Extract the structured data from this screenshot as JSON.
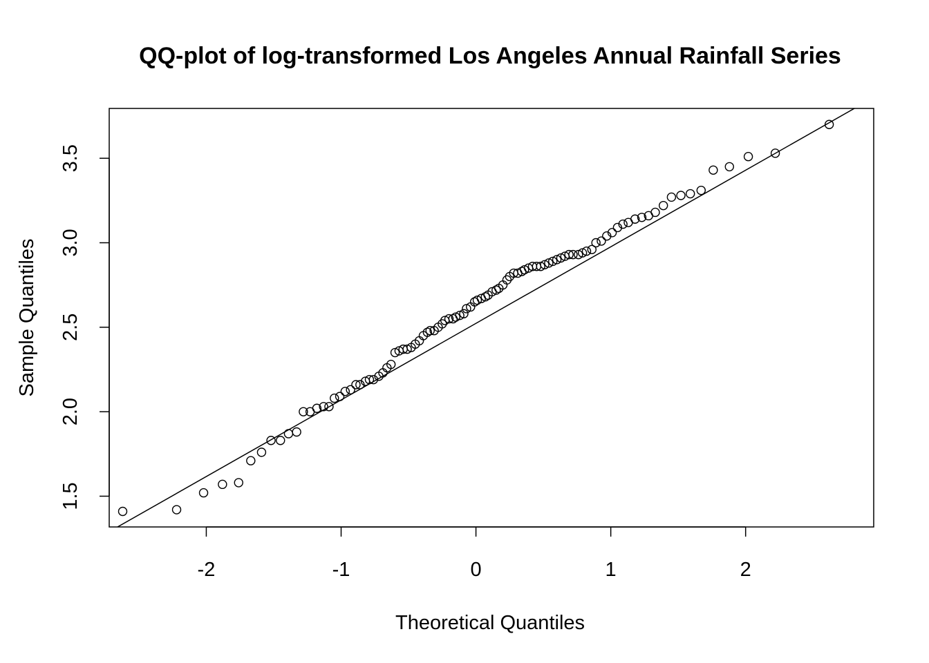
{
  "chart_data": {
    "type": "scatter",
    "title": "QQ-plot of log-transformed Los Angeles Annual Rainfall Series",
    "xlabel": "Theoretical Quantiles",
    "ylabel": "Sample Quantiles",
    "xlim": [
      -2.72,
      2.95
    ],
    "ylim": [
      1.318,
      3.795
    ],
    "x_ticks": [
      -2,
      -1,
      0,
      1,
      2
    ],
    "x_tick_labels": [
      "-2",
      "-1",
      "0",
      "1",
      "2"
    ],
    "y_ticks": [
      1.5,
      2.0,
      2.5,
      3.0,
      3.5
    ],
    "y_tick_labels": [
      "1.5",
      "2.0",
      "2.5",
      "3.0",
      "3.5"
    ],
    "grid": false,
    "legend": "none",
    "reference_line": {
      "x": [
        -2.72,
        2.95
      ],
      "y": [
        1.29,
        3.86
      ]
    },
    "series": [
      {
        "marker": "open-circle",
        "color": "#000000",
        "x": [
          -2.62,
          -2.22,
          -2.02,
          -1.88,
          -1.76,
          -1.67,
          -1.59,
          -1.52,
          -1.45,
          -1.39,
          -1.33,
          -1.28,
          -1.23,
          -1.18,
          -1.13,
          -1.09,
          -1.05,
          -1.01,
          -0.97,
          -0.93,
          -0.89,
          -0.86,
          -0.82,
          -0.79,
          -0.76,
          -0.72,
          -0.69,
          -0.66,
          -0.63,
          -0.6,
          -0.57,
          -0.54,
          -0.51,
          -0.48,
          -0.45,
          -0.42,
          -0.39,
          -0.36,
          -0.34,
          -0.31,
          -0.28,
          -0.25,
          -0.23,
          -0.2,
          -0.17,
          -0.15,
          -0.12,
          -0.09,
          -0.07,
          -0.04,
          -0.01,
          0.01,
          0.04,
          0.07,
          0.09,
          0.12,
          0.15,
          0.17,
          0.2,
          0.23,
          0.25,
          0.28,
          0.31,
          0.34,
          0.36,
          0.39,
          0.42,
          0.45,
          0.48,
          0.51,
          0.54,
          0.57,
          0.6,
          0.63,
          0.66,
          0.69,
          0.72,
          0.76,
          0.79,
          0.82,
          0.86,
          0.89,
          0.93,
          0.97,
          1.01,
          1.05,
          1.09,
          1.13,
          1.18,
          1.23,
          1.28,
          1.33,
          1.39,
          1.45,
          1.52,
          1.59,
          1.67,
          1.76,
          1.88,
          2.02,
          2.22,
          2.62
        ],
        "y": [
          1.41,
          1.42,
          1.52,
          1.57,
          1.58,
          1.71,
          1.76,
          1.83,
          1.83,
          1.87,
          1.88,
          2.0,
          2.0,
          2.02,
          2.03,
          2.03,
          2.08,
          2.09,
          2.12,
          2.13,
          2.16,
          2.16,
          2.18,
          2.19,
          2.19,
          2.21,
          2.23,
          2.26,
          2.28,
          2.35,
          2.36,
          2.37,
          2.37,
          2.38,
          2.4,
          2.42,
          2.45,
          2.47,
          2.48,
          2.48,
          2.5,
          2.52,
          2.54,
          2.55,
          2.55,
          2.56,
          2.57,
          2.58,
          2.61,
          2.62,
          2.65,
          2.66,
          2.67,
          2.68,
          2.69,
          2.71,
          2.72,
          2.73,
          2.75,
          2.78,
          2.8,
          2.82,
          2.82,
          2.83,
          2.84,
          2.85,
          2.86,
          2.86,
          2.86,
          2.87,
          2.88,
          2.89,
          2.9,
          2.91,
          2.92,
          2.93,
          2.93,
          2.93,
          2.94,
          2.95,
          2.96,
          3.0,
          3.01,
          3.04,
          3.06,
          3.09,
          3.11,
          3.12,
          3.14,
          3.15,
          3.16,
          3.18,
          3.22,
          3.27,
          3.28,
          3.29,
          3.31,
          3.43,
          3.45,
          3.51,
          3.53,
          3.7
        ]
      }
    ]
  }
}
